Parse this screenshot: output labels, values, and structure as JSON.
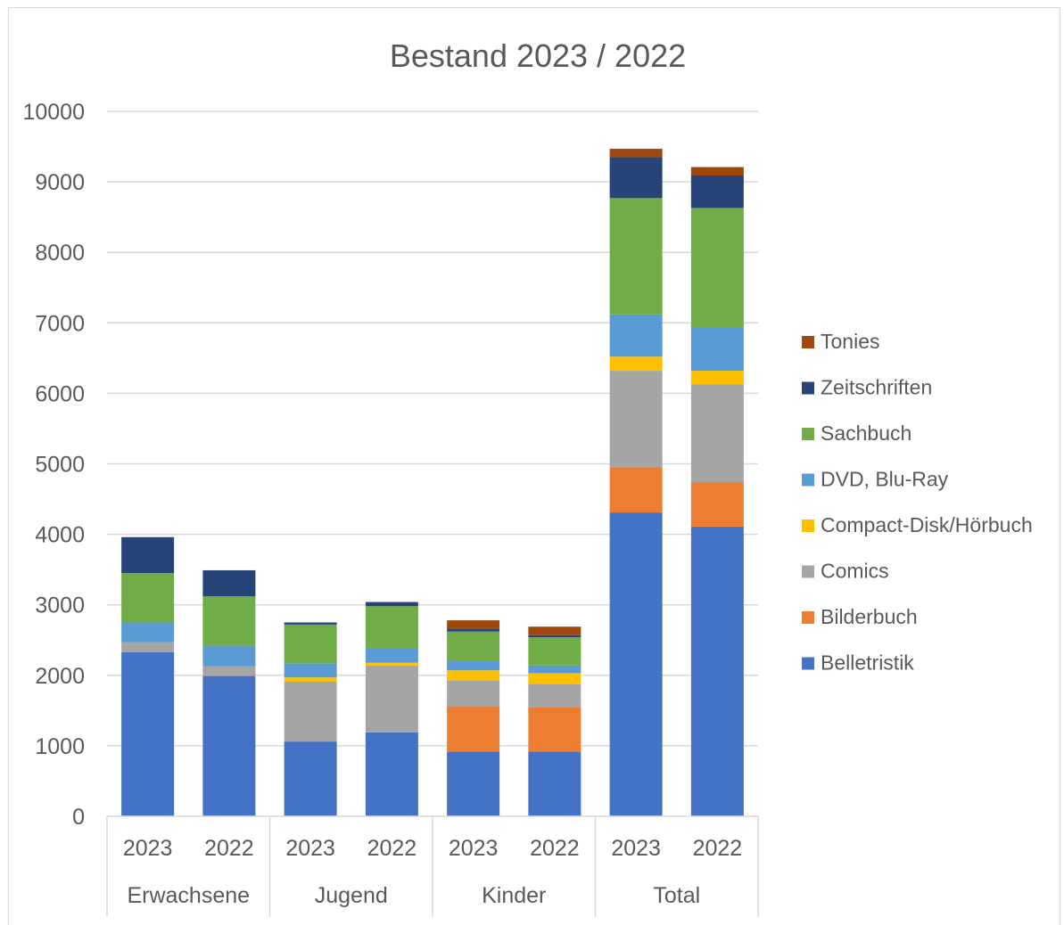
{
  "chart_data": {
    "type": "bar",
    "stacked": true,
    "title": "Bestand 2023 / 2022",
    "xlabel": "",
    "ylabel": "",
    "ylim": [
      0,
      10000
    ],
    "yticks": [
      "0",
      "1000",
      "2000",
      "3000",
      "4000",
      "5000",
      "6000",
      "7000",
      "8000",
      "9000",
      "10000"
    ],
    "grid": true,
    "legend_position": "right",
    "groups": [
      "Erwachsene",
      "Jugend",
      "Kinder",
      "Total"
    ],
    "categories": [
      "2023",
      "2022",
      "2023",
      "2022",
      "2023",
      "2022",
      "2023",
      "2022"
    ],
    "series": [
      {
        "name": "Belletristik",
        "color": "#4472c4",
        "values": [
          2330,
          1990,
          1060,
          1190,
          920,
          920,
          4310,
          4110
        ]
      },
      {
        "name": "Bilderbuch",
        "color": "#ed7d31",
        "values": [
          0,
          0,
          0,
          0,
          640,
          630,
          640,
          630
        ]
      },
      {
        "name": "Comics",
        "color": "#a5a5a5",
        "values": [
          140,
          140,
          850,
          950,
          370,
          330,
          1370,
          1390
        ]
      },
      {
        "name": "Compact-Disk/Hörbuch",
        "color": "#ffc000",
        "values": [
          0,
          0,
          60,
          40,
          140,
          150,
          200,
          190
        ]
      },
      {
        "name": "DVD, Blu-Ray",
        "color": "#5b9bd5",
        "values": [
          280,
          290,
          200,
          210,
          130,
          110,
          600,
          620
        ]
      },
      {
        "name": "Sachbuch",
        "color": "#70ad47",
        "values": [
          700,
          700,
          550,
          590,
          420,
          400,
          1650,
          1690
        ]
      },
      {
        "name": "Zeitschriften",
        "color": "#264478",
        "values": [
          510,
          370,
          30,
          60,
          40,
          30,
          580,
          460
        ]
      },
      {
        "name": "Tonies",
        "color": "#9e480e",
        "values": [
          0,
          0,
          0,
          0,
          120,
          120,
          120,
          120
        ]
      }
    ]
  }
}
